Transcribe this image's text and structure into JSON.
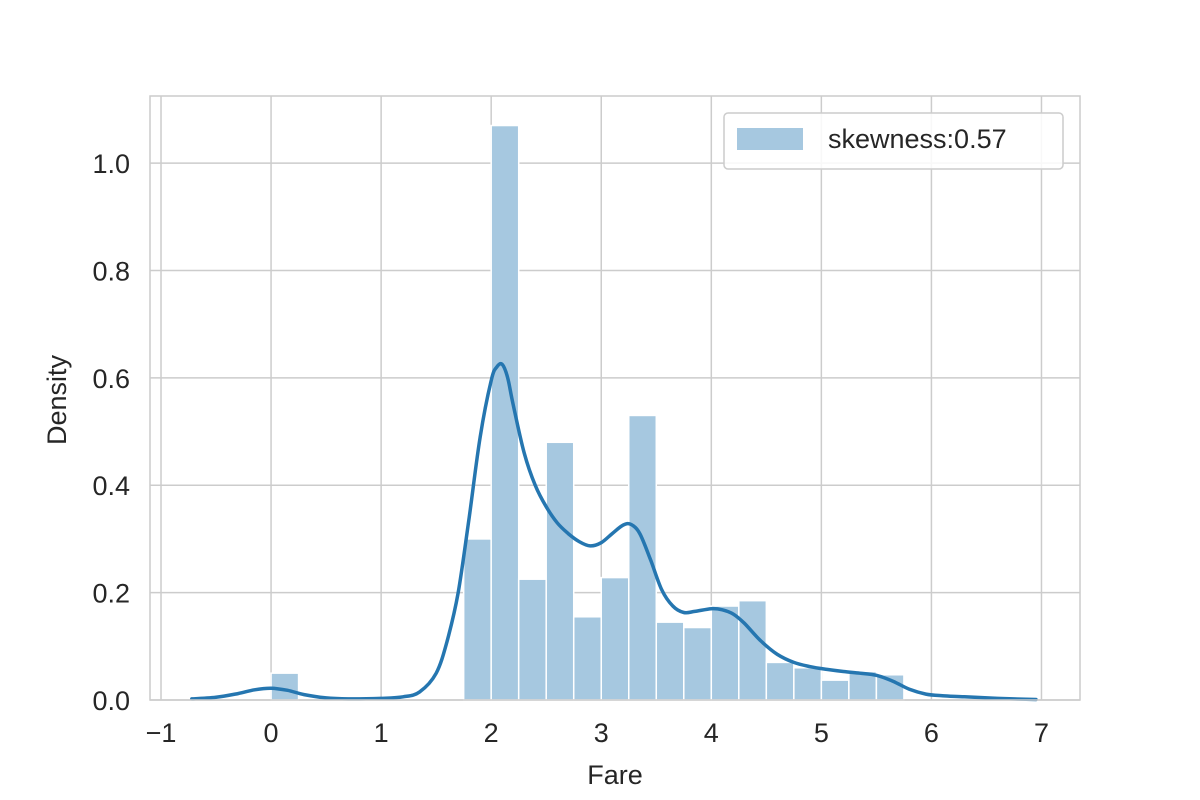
{
  "chart_data": {
    "type": "bar",
    "subtype": "histogram-with-kde",
    "xlabel": "Fare",
    "ylabel": "Density",
    "xlim": [
      -1.1,
      7.35
    ],
    "ylim": [
      0,
      1.125
    ],
    "xticks": [
      -1,
      0,
      1,
      2,
      3,
      4,
      5,
      6,
      7
    ],
    "xtick_labels": [
      "−1",
      "0",
      "1",
      "2",
      "3",
      "4",
      "5",
      "6",
      "7"
    ],
    "yticks": [
      0.0,
      0.2,
      0.4,
      0.6,
      0.8,
      1.0
    ],
    "ytick_labels": [
      "0.0",
      "0.2",
      "0.4",
      "0.6",
      "0.8",
      "1.0"
    ],
    "grid": true,
    "legend_position": "top-right",
    "legend_entries": [
      "skewness:0.57"
    ],
    "colors": {
      "bar_fill": "#a6c8e0",
      "bar_edge": "#ffffff",
      "kde_line": "#2576b0",
      "grid": "#cccccc",
      "text": "#262626"
    },
    "bins": [
      {
        "start": 0.0,
        "end": 0.25,
        "density": 0.05
      },
      {
        "start": 0.25,
        "end": 0.5,
        "density": 0.0
      },
      {
        "start": 0.5,
        "end": 0.75,
        "density": 0.0
      },
      {
        "start": 0.75,
        "end": 1.0,
        "density": 0.0
      },
      {
        "start": 1.0,
        "end": 1.25,
        "density": 0.0
      },
      {
        "start": 1.25,
        "end": 1.5,
        "density": 0.0
      },
      {
        "start": 1.5,
        "end": 1.75,
        "density": 0.0
      },
      {
        "start": 1.75,
        "end": 2.0,
        "density": 0.3
      },
      {
        "start": 2.0,
        "end": 2.25,
        "density": 1.07
      },
      {
        "start": 2.25,
        "end": 2.5,
        "density": 0.225
      },
      {
        "start": 2.5,
        "end": 2.75,
        "density": 0.48
      },
      {
        "start": 2.75,
        "end": 3.0,
        "density": 0.155
      },
      {
        "start": 3.0,
        "end": 3.25,
        "density": 0.228
      },
      {
        "start": 3.25,
        "end": 3.5,
        "density": 0.53
      },
      {
        "start": 3.5,
        "end": 3.75,
        "density": 0.145
      },
      {
        "start": 3.75,
        "end": 4.0,
        "density": 0.135
      },
      {
        "start": 4.0,
        "end": 4.25,
        "density": 0.175
      },
      {
        "start": 4.25,
        "end": 4.5,
        "density": 0.185
      },
      {
        "start": 4.5,
        "end": 4.75,
        "density": 0.07
      },
      {
        "start": 4.75,
        "end": 5.0,
        "density": 0.06
      },
      {
        "start": 5.0,
        "end": 5.25,
        "density": 0.037
      },
      {
        "start": 5.25,
        "end": 5.5,
        "density": 0.053
      },
      {
        "start": 5.5,
        "end": 5.75,
        "density": 0.047
      }
    ],
    "kde": {
      "x": [
        -0.72,
        -0.5,
        -0.3,
        -0.15,
        0.0,
        0.15,
        0.3,
        0.5,
        0.7,
        1.0,
        1.2,
        1.35,
        1.5,
        1.6,
        1.7,
        1.8,
        1.9,
        2.0,
        2.05,
        2.1,
        2.15,
        2.2,
        2.3,
        2.4,
        2.5,
        2.6,
        2.7,
        2.8,
        2.9,
        3.0,
        3.1,
        3.2,
        3.27,
        3.35,
        3.45,
        3.55,
        3.65,
        3.75,
        3.85,
        4.0,
        4.1,
        4.2,
        4.3,
        4.45,
        4.6,
        4.75,
        4.9,
        5.05,
        5.2,
        5.35,
        5.5,
        5.65,
        5.8,
        5.95,
        6.1,
        6.3,
        6.6,
        6.95
      ],
      "y": [
        0.002,
        0.005,
        0.012,
        0.019,
        0.022,
        0.018,
        0.01,
        0.004,
        0.002,
        0.003,
        0.006,
        0.015,
        0.05,
        0.11,
        0.2,
        0.34,
        0.49,
        0.595,
        0.62,
        0.625,
        0.6,
        0.55,
        0.46,
        0.4,
        0.36,
        0.33,
        0.31,
        0.295,
        0.287,
        0.293,
        0.31,
        0.326,
        0.327,
        0.31,
        0.26,
        0.205,
        0.175,
        0.163,
        0.165,
        0.17,
        0.168,
        0.16,
        0.143,
        0.11,
        0.085,
        0.07,
        0.062,
        0.057,
        0.053,
        0.05,
        0.046,
        0.035,
        0.02,
        0.011,
        0.008,
        0.006,
        0.003,
        0.001
      ]
    }
  }
}
